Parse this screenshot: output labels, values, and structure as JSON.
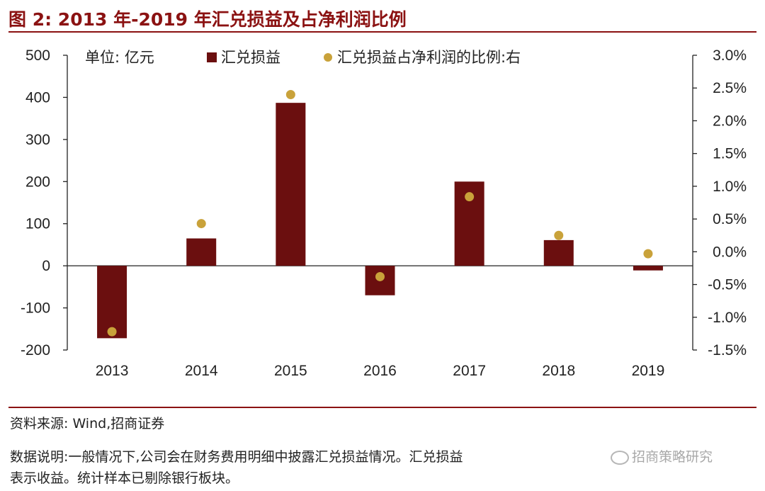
{
  "figure": {
    "title": "图 2:  2013 年-2019 年汇兑损益及占净利润比例",
    "unit_label": "单位:  亿元",
    "source": "资料来源:  Wind,招商证券",
    "explain_line1": "数据说明:一般情况下,公司会在财务费用明细中披露汇兑损益情况。汇兑损益",
    "explain_line2": "表示收益。统计样本已剔除银行板块。",
    "watermark": "招商策略研究"
  },
  "colors": {
    "bar": "#6b0f0f",
    "dot": "#c9a23a",
    "accent": "#8b1212"
  },
  "chart_data": {
    "type": "bar",
    "categories": [
      "2013",
      "2014",
      "2015",
      "2016",
      "2017",
      "2018",
      "2019"
    ],
    "series": [
      {
        "name": "汇兑损益",
        "type": "bar",
        "axis": "left",
        "values": [
          -172,
          65,
          387,
          -70,
          200,
          61,
          -11
        ]
      },
      {
        "name": "汇兑损益占净利润的比例:右",
        "type": "scatter",
        "axis": "right",
        "values": [
          -1.22,
          0.43,
          2.4,
          -0.38,
          0.84,
          0.25,
          -0.03
        ]
      }
    ],
    "ylim": [
      -200,
      500
    ],
    "yticks": [
      "-200",
      "-100",
      "0",
      "100",
      "200",
      "300",
      "400",
      "500"
    ],
    "y2lim": [
      -1.5,
      3.0
    ],
    "y2ticks": [
      "-1.5%",
      "-1.0%",
      "-0.5%",
      "0.0%",
      "0.5%",
      "1.0%",
      "1.5%",
      "2.0%",
      "2.5%",
      "3.0%"
    ],
    "legend_position": "top"
  }
}
